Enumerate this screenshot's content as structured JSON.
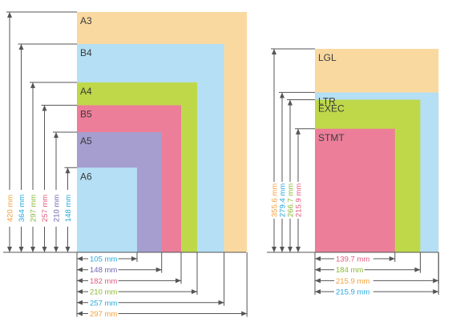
{
  "colors": {
    "orange": "#fad9a0",
    "blue": "#b4dff5",
    "green": "#bfd84a",
    "pink": "#ec7e9a",
    "purple": "#a59ecf",
    "line": "#555555",
    "text_orange": "#f4a03c",
    "text_blue": "#29a8dd",
    "text_green": "#8ab833",
    "text_pink": "#e0597e",
    "text_purple": "#6f66b0"
  },
  "iso": {
    "papers": [
      {
        "name": "A3",
        "width": "297 mm",
        "height": "420 mm",
        "w_val": 297,
        "h_val": 420,
        "fill": "orange",
        "text_color": "text_orange"
      },
      {
        "name": "B4",
        "width": "257 mm",
        "height": "364 mm",
        "w_val": 257,
        "h_val": 364,
        "fill": "blue",
        "text_color": "text_blue"
      },
      {
        "name": "A4",
        "width": "210 mm",
        "height": "297 mm",
        "w_val": 210,
        "h_val": 297,
        "fill": "green",
        "text_color": "text_green"
      },
      {
        "name": "B5",
        "width": "182 mm",
        "height": "257 mm",
        "w_val": 182,
        "h_val": 257,
        "fill": "pink",
        "text_color": "text_pink"
      },
      {
        "name": "A5",
        "width": "148 mm",
        "height": "210 mm",
        "w_val": 148,
        "h_val": 210,
        "fill": "purple",
        "text_color": "text_purple"
      },
      {
        "name": "A6",
        "width": "105 mm",
        "height": "148 mm",
        "w_val": 105,
        "h_val": 148,
        "fill": "blue",
        "text_color": "text_blue"
      }
    ]
  },
  "us": {
    "papers": [
      {
        "name": "LGL",
        "width": "215.9 mm",
        "height": "355.6 mm",
        "w_val": 215.9,
        "h_val": 355.6,
        "fill": "orange",
        "text_color": "text_orange"
      },
      {
        "name": "LTR",
        "width": "215.9 mm",
        "height": "279.4 mm",
        "w_val": 215.9,
        "h_val": 279.4,
        "fill": "blue",
        "text_color": "text_blue"
      },
      {
        "name": "EXEC",
        "width": "184 mm",
        "height": "266.7 mm",
        "w_val": 184,
        "h_val": 266.7,
        "fill": "green",
        "text_color": "text_green"
      },
      {
        "name": "STMT",
        "width": "139.7 mm",
        "height": "215.9 mm",
        "w_val": 139.7,
        "h_val": 215.9,
        "fill": "pink",
        "text_color": "text_pink"
      }
    ]
  }
}
